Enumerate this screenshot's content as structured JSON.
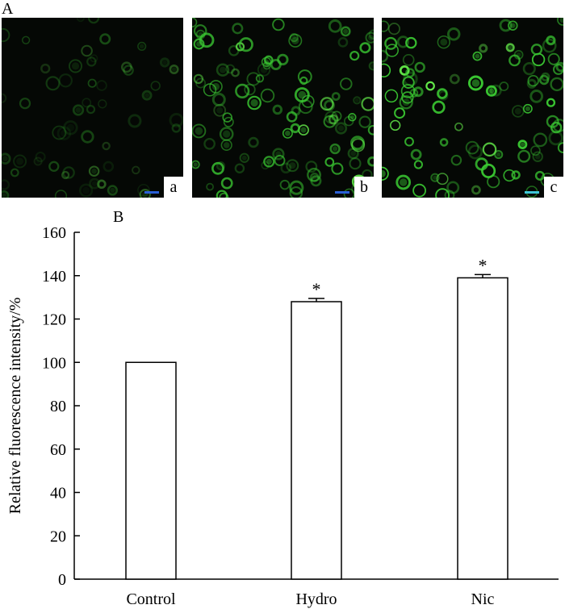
{
  "panel_a_label": "A",
  "panel_b_label": "B",
  "micrographs": [
    {
      "label": "a",
      "seed": 11,
      "cells": 55,
      "brightness": 0.35
    },
    {
      "label": "b",
      "seed": 23,
      "cells": 110,
      "brightness": 0.85
    },
    {
      "label": "c",
      "seed": 37,
      "cells": 95,
      "brightness": 1.0
    }
  ],
  "colors": {
    "cell": "#3ac832",
    "cell_bright": "#6cff50",
    "background": "#050805",
    "scalebar_a": "#2a5fd6",
    "scalebar_c": "#3fc6d8"
  },
  "chart_data": {
    "type": "bar",
    "title": "",
    "xlabel": "",
    "ylabel": "Relative fluorescence intensity/%",
    "categories": [
      "Control",
      "Hydro",
      "Nic"
    ],
    "values": [
      100,
      128,
      139
    ],
    "errors": [
      0,
      1.5,
      1.5
    ],
    "annotations": [
      "",
      "*",
      "*"
    ],
    "ylim": [
      0,
      160
    ],
    "yticks": [
      0,
      20,
      40,
      60,
      80,
      100,
      120,
      140,
      160
    ],
    "grid": false,
    "bar_fill": "#ffffff",
    "bar_stroke": "#000000"
  }
}
